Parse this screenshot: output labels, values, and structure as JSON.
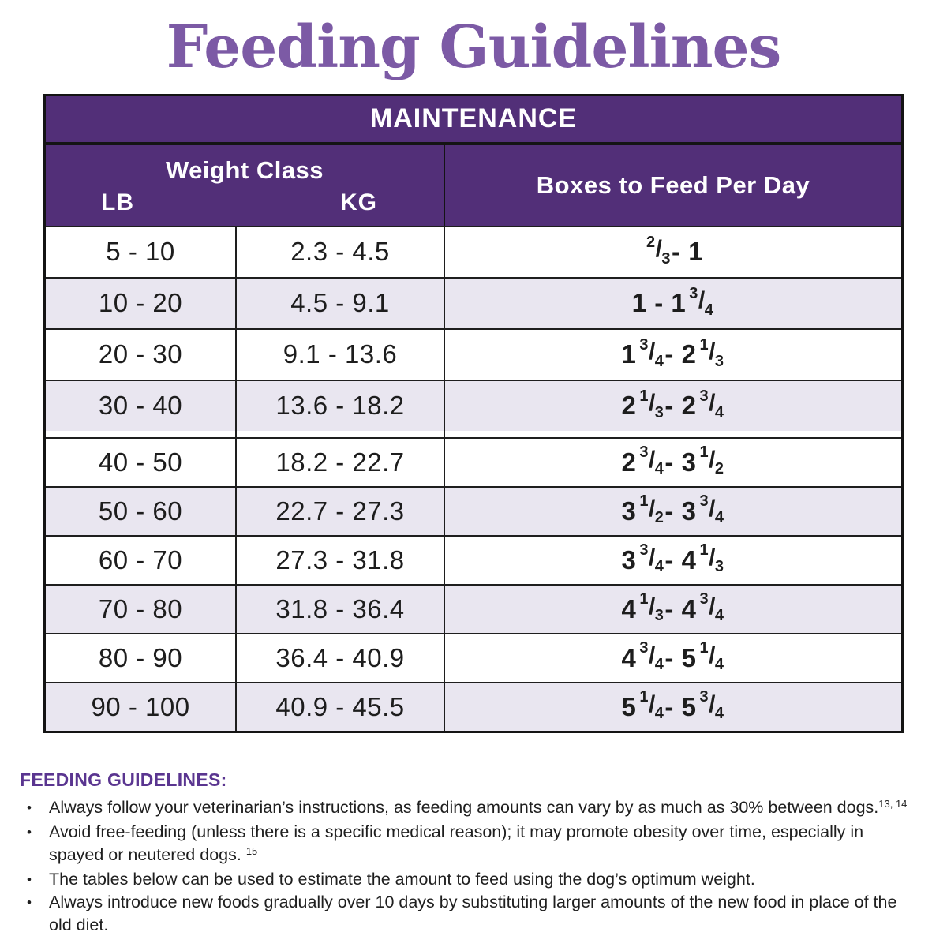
{
  "page": {
    "title": "Feeding Guidelines"
  },
  "colors": {
    "table_purple": "#522f78",
    "title_purple": "#7c5aa5",
    "notes_heading_purple": "#5a3590",
    "row_alt": "#e9e6f0",
    "border_dark": "#141414"
  },
  "table": {
    "section_header": "MAINTENANCE",
    "weight_class_header": "Weight Class",
    "lb_header": "LB",
    "kg_header": "KG",
    "boxes_header": "Boxes to Feed Per Day",
    "gap_after_row": 4,
    "rows": [
      {
        "lb": "5 - 10",
        "kg": "2.3 - 4.5",
        "boxes": "2/3 - 1"
      },
      {
        "lb": "10 - 20",
        "kg": "4.5 - 9.1",
        "boxes": "1 - 1 3/4"
      },
      {
        "lb": "20 - 30",
        "kg": "9.1 - 13.6",
        "boxes": "1 3/4 - 2 1/3"
      },
      {
        "lb": "30 - 40",
        "kg": "13.6 - 18.2",
        "boxes": "2 1/3 - 2 3/4"
      },
      {
        "lb": "40 - 50",
        "kg": "18.2 - 22.7",
        "boxes": "2 3/4 - 3 1/2"
      },
      {
        "lb": "50 - 60",
        "kg": "22.7 - 27.3",
        "boxes": "3 1/2 - 3 3/4"
      },
      {
        "lb": "60 - 70",
        "kg": "27.3 - 31.8",
        "boxes": "3 3/4 - 4 1/3"
      },
      {
        "lb": "70 - 80",
        "kg": "31.8 - 36.4",
        "boxes": "4 1/3 - 4 3/4"
      },
      {
        "lb": "80 - 90",
        "kg": "36.4 - 40.9",
        "boxes": "4 3/4 - 5 1/4"
      },
      {
        "lb": "90 - 100",
        "kg": "40.9 - 45.5",
        "boxes": "5 1/4 - 5 3/4"
      }
    ]
  },
  "notes": {
    "heading": "FEEDING GUIDELINES:",
    "bullet_glyph": "•",
    "bullets": [
      {
        "text": "Always follow your veterinarian’s instructions, as feeding amounts can vary by as much as 30% between dogs.",
        "sup": "13, 14"
      },
      {
        "text": "Avoid free-feeding (unless there is a specific medical reason); it may promote obesity over time, especially in spayed or neutered dogs. ",
        "sup": "15"
      },
      {
        "text": "The tables below can be used to estimate the amount to feed using the dog’s optimum weight.",
        "sup": ""
      },
      {
        "text": "Always introduce new foods gradually over 10 days by substituting larger amounts of the new food in place of the old diet.",
        "sup": ""
      }
    ]
  }
}
